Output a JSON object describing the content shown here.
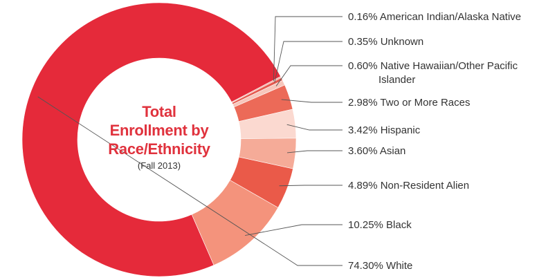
{
  "chart_data": {
    "type": "pie",
    "donut": true,
    "title_lines": [
      "Total",
      "Enrollment by",
      "Race/Ethnicity"
    ],
    "subtitle": "(Fall 2013)",
    "unit": "%",
    "slices": [
      {
        "label": "0.16% American Indian/Alaska Native",
        "value": 0.16,
        "color": "#f0a596"
      },
      {
        "label": "0.35% Unknown",
        "value": 0.35,
        "color": "#e55a4f"
      },
      {
        "label": "0.60% Native Hawaiian/Other Pacific Islander",
        "value": 0.6,
        "color": "#f7c6bb"
      },
      {
        "label": "2.98% Two or More Races",
        "value": 2.98,
        "color": "#ec6a58"
      },
      {
        "label": "3.42% Hispanic",
        "value": 3.42,
        "color": "#fbd9d0"
      },
      {
        "label": "3.60% Asian",
        "value": 3.6,
        "color": "#f5ab98"
      },
      {
        "label": "4.89% Non-Resident Alien",
        "value": 4.89,
        "color": "#ea5a49"
      },
      {
        "label": "10.25% Black",
        "value": 10.25,
        "color": "#f4937c"
      },
      {
        "label": "74.30% White",
        "value": 74.3,
        "color": "#e52a3a"
      }
    ]
  }
}
